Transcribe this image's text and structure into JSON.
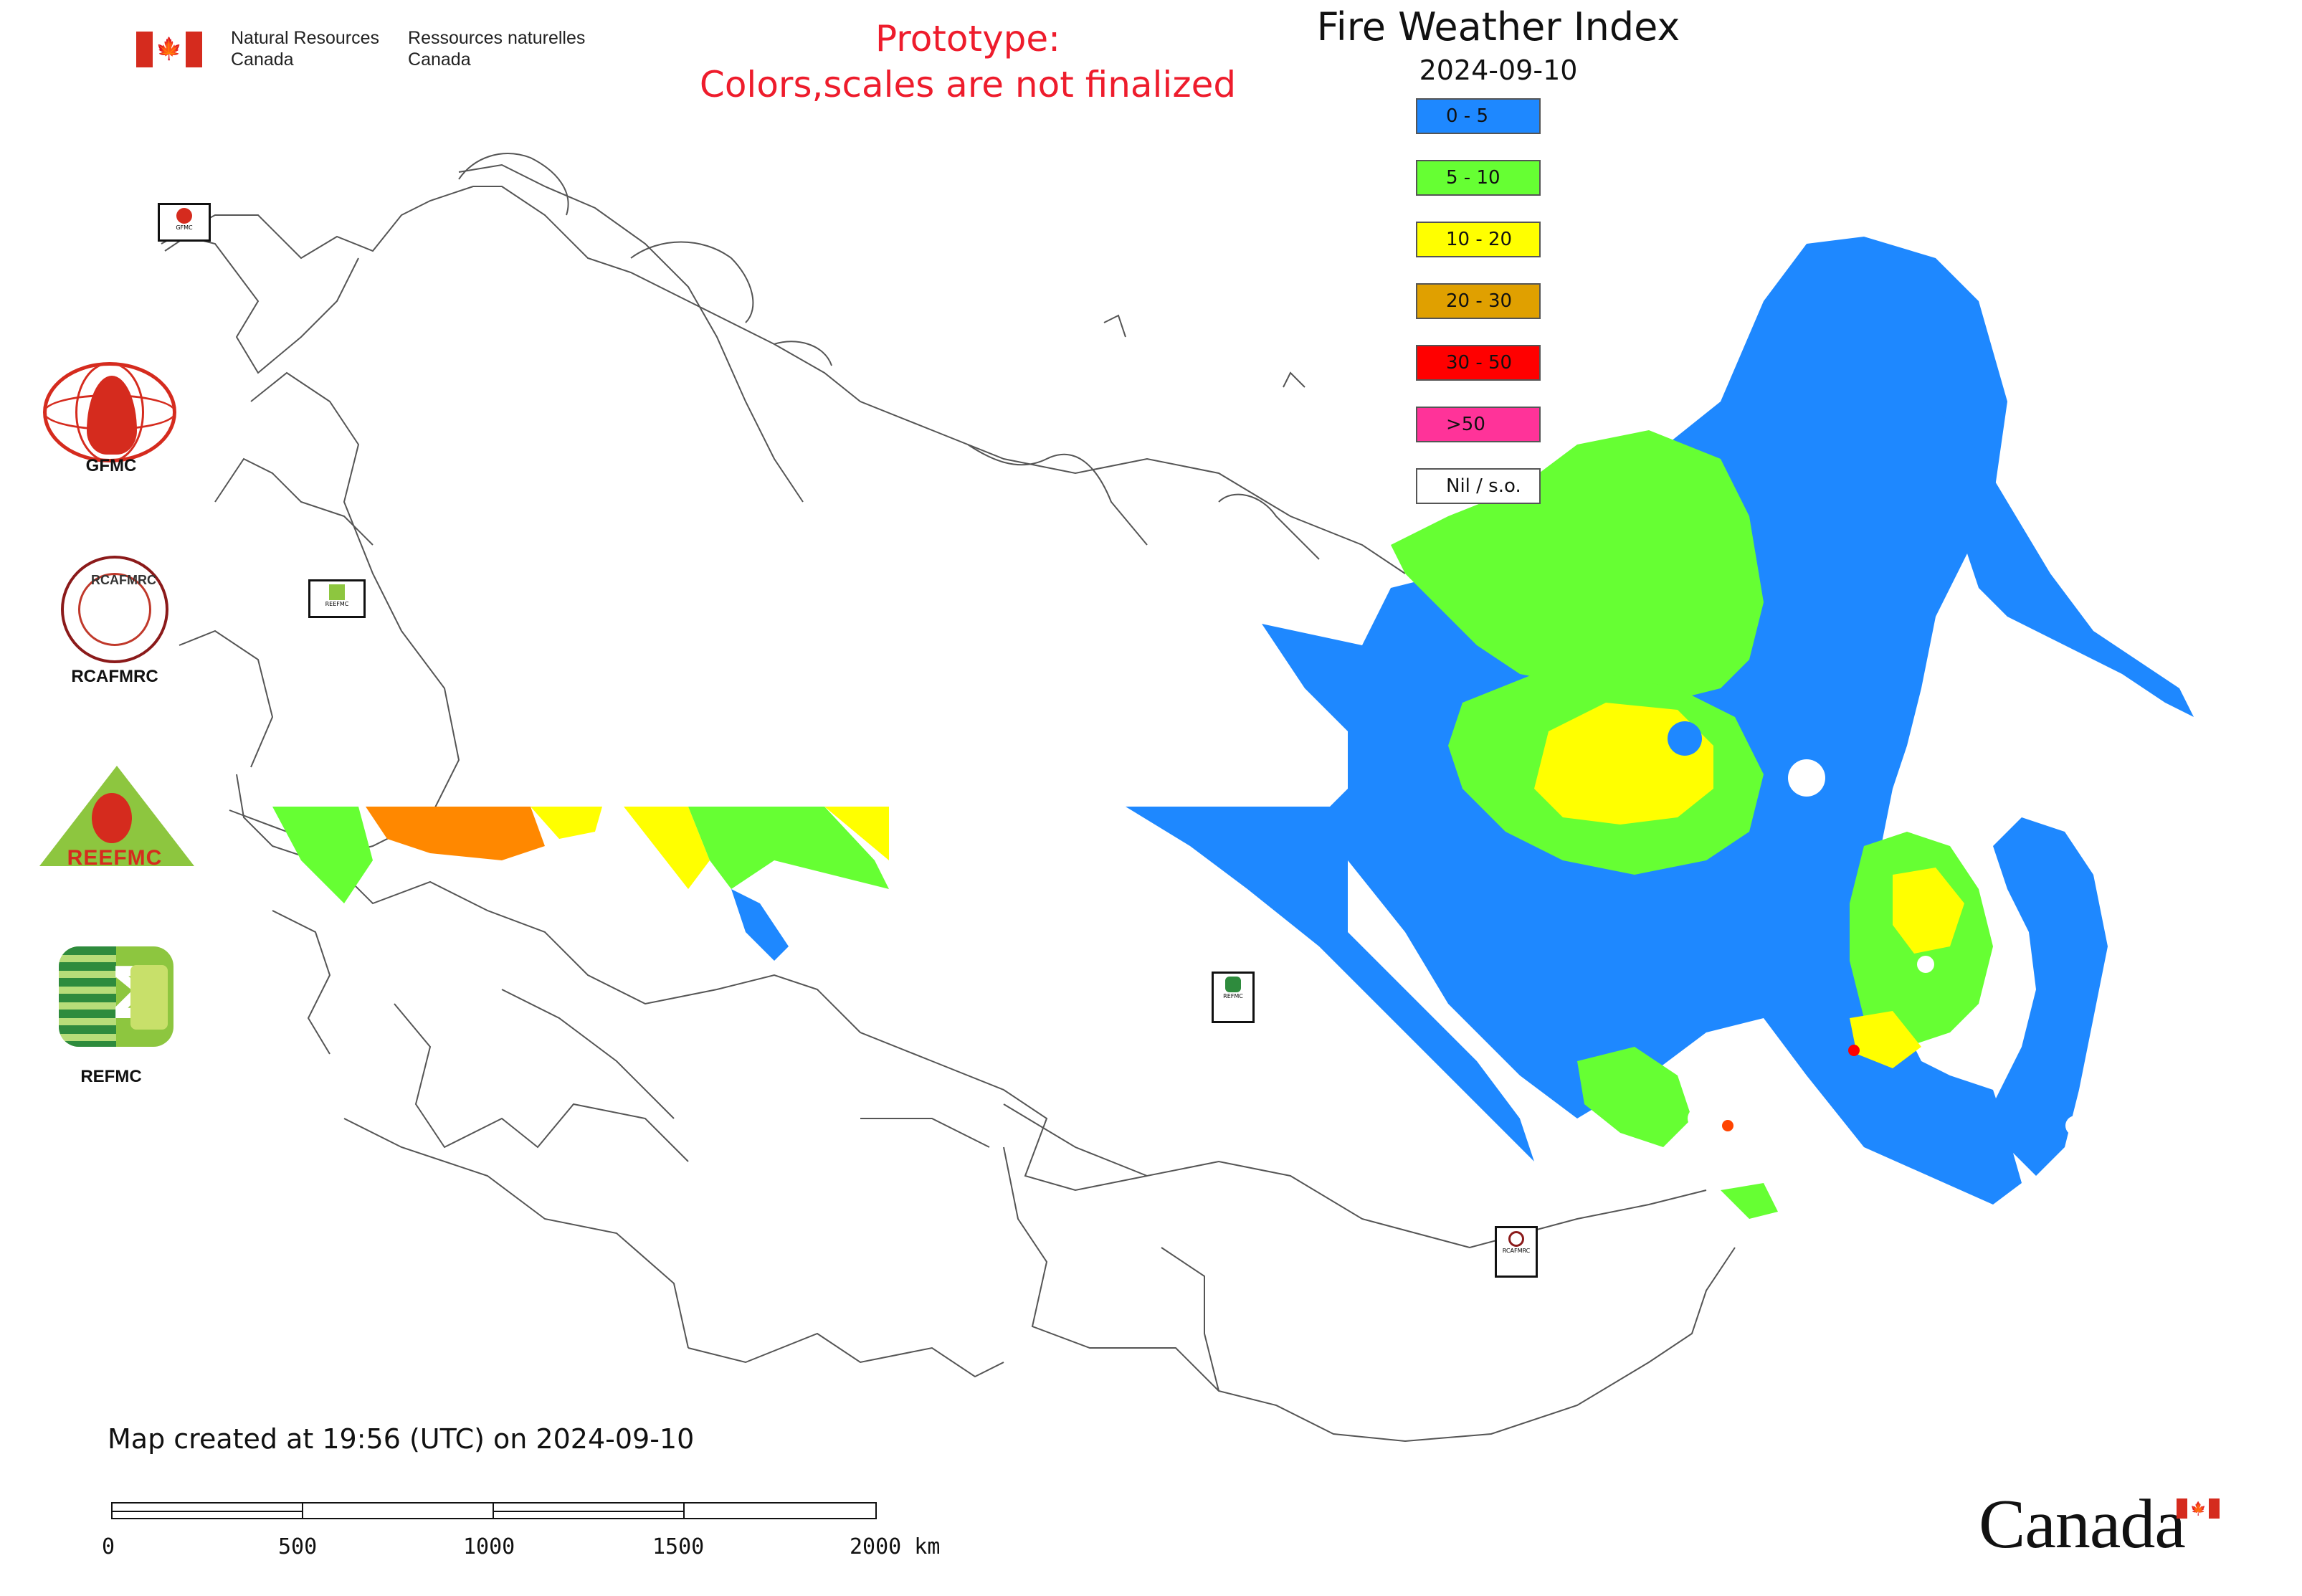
{
  "header": {
    "dept_en": [
      "Natural Resources",
      "Canada"
    ],
    "dept_fr": [
      "Ressources naturelles",
      "Canada"
    ],
    "prototype_line1": "Prototype:",
    "prototype_line2": "Colors,scales are not finalized",
    "title": "Fire Weather Index",
    "date": "2024-09-10"
  },
  "legend": [
    {
      "label": "0 - 5",
      "color": "#1e88ff"
    },
    {
      "label": "5 - 10",
      "color": "#66ff33"
    },
    {
      "label": "10 - 20",
      "color": "#ffff00"
    },
    {
      "label": "20 - 30",
      "color": "#e0a000"
    },
    {
      "label": "30 - 50",
      "color": "#ff0000"
    },
    {
      "label": ">50",
      "color": "#ff3399"
    },
    {
      "label": "Nil / s.o.",
      "color": "#ffffff"
    }
  ],
  "logos": {
    "gfmc": "GFMC",
    "rcafmrc": "RCAFMRC",
    "reefmc_text": "REEFMC",
    "refmc": "REFMC",
    "rca_inner": "RCAFMRC"
  },
  "map_markers": [
    {
      "name": "gfmc-map-marker",
      "label": "GFMC",
      "icon": "flame-icon",
      "color": "#d52b1e"
    },
    {
      "name": "reefmc-map-marker",
      "label": "REEFMC",
      "icon": "triangle-flame-icon",
      "color": "#8dc63f"
    },
    {
      "name": "refmc-map-marker",
      "label": "REFMC",
      "icon": "sigma-icon",
      "color": "#2e8b3d"
    },
    {
      "name": "rcafmrc-map-marker",
      "label": "RCAFMRC",
      "icon": "seal-icon",
      "color": "#8b1a1a"
    }
  ],
  "footer": {
    "created": "Map created at 19:56 (UTC) on 2024-09-10",
    "scale_labels": [
      "0",
      "500",
      "1000",
      "1500",
      "2000 km"
    ],
    "wordmark": "Canada"
  }
}
